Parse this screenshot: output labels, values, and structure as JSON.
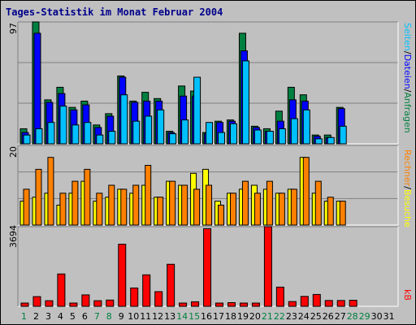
{
  "title": "Tages-Statistik im Monat Februar 2004",
  "colors": {
    "anfragen": "#008040",
    "dateien": "#0000ff",
    "seiten": "#00c0ff",
    "besuche": "#ffff00",
    "rechner": "#ff8000",
    "kb": "#ff0000",
    "weekday": "#000000",
    "weekend": "#008040"
  },
  "right_labels": {
    "anfragen": "Anfragen",
    "dateien": "Dateien",
    "seiten": "Seiten",
    "besuche": "Besuche",
    "rechner": "Rechner",
    "kb": "kB",
    "sep": "/"
  },
  "chart_data": [
    {
      "type": "bar",
      "panel": "top",
      "ymax_label": "97",
      "x": [
        1,
        2,
        3,
        4,
        5,
        6,
        7,
        8,
        9,
        10,
        11,
        12,
        13,
        14,
        15,
        16,
        17,
        18,
        19,
        20,
        21,
        22,
        23,
        24,
        25,
        26,
        27,
        28,
        29,
        30,
        31
      ],
      "series": [
        {
          "name": "Anfragen",
          "values": [
            12,
            97,
            35,
            45,
            29,
            34,
            15,
            24,
            54,
            34,
            41,
            36,
            10,
            46,
            42,
            9,
            18,
            19,
            88,
            14,
            12,
            26,
            45,
            39,
            7,
            7,
            29,
            0,
            0,
            0,
            0
          ]
        },
        {
          "name": "Dateien",
          "values": [
            9,
            88,
            33,
            40,
            27,
            31,
            13,
            22,
            53,
            33,
            34,
            34,
            9,
            38,
            38,
            8,
            17,
            18,
            74,
            13,
            10,
            18,
            35,
            34,
            6,
            5,
            28,
            0,
            0,
            0,
            0
          ]
        },
        {
          "name": "Seiten",
          "values": [
            7,
            12,
            17,
            30,
            15,
            17,
            7,
            10,
            39,
            18,
            22,
            27,
            8,
            19,
            53,
            17,
            9,
            16,
            66,
            11,
            10,
            12,
            20,
            27,
            4,
            5,
            14,
            0,
            0,
            0,
            0
          ]
        }
      ]
    },
    {
      "type": "bar",
      "panel": "middle",
      "ymax_label": "20",
      "x": [
        1,
        2,
        3,
        4,
        5,
        6,
        7,
        8,
        9,
        10,
        11,
        12,
        13,
        14,
        15,
        16,
        17,
        18,
        19,
        20,
        21,
        22,
        23,
        24,
        25,
        26,
        27,
        28,
        29,
        30,
        31
      ],
      "series": [
        {
          "name": "Besuche",
          "values": [
            6,
            7,
            8,
            5,
            8,
            11,
            6,
            7,
            9,
            8,
            10,
            7,
            11,
            10,
            13,
            14,
            6,
            8,
            9,
            10,
            9,
            8,
            9,
            17,
            8,
            6,
            6,
            0,
            0,
            0,
            0
          ]
        },
        {
          "name": "Rechner",
          "values": [
            9,
            14,
            17,
            8,
            11,
            14,
            8,
            10,
            9,
            10,
            15,
            7,
            11,
            10,
            9,
            10,
            5,
            8,
            11,
            8,
            11,
            8,
            9,
            17,
            11,
            7,
            6,
            0,
            0,
            0,
            0
          ]
        }
      ]
    },
    {
      "type": "bar",
      "panel": "bottom",
      "ymax_label": "3694",
      "x": [
        1,
        2,
        3,
        4,
        5,
        6,
        7,
        8,
        9,
        10,
        11,
        12,
        13,
        14,
        15,
        16,
        17,
        18,
        19,
        20,
        21,
        22,
        23,
        24,
        25,
        26,
        27,
        28,
        29,
        30,
        31
      ],
      "series": [
        {
          "name": "kB",
          "values": [
            150,
            450,
            260,
            1500,
            140,
            530,
            260,
            290,
            2880,
            850,
            1460,
            680,
            1950,
            140,
            210,
            3600,
            150,
            170,
            150,
            130,
            3694,
            890,
            220,
            460,
            550,
            270,
            270,
            280,
            0,
            0,
            0
          ]
        }
      ]
    }
  ],
  "x_tick_labels": [
    "1",
    "2",
    "3",
    "4",
    "5",
    "6",
    "7",
    "8",
    "9",
    "10",
    "11",
    "12",
    "13",
    "14",
    "15",
    "16",
    "17",
    "18",
    "19",
    "20",
    "21",
    "22",
    "23",
    "24",
    "25",
    "26",
    "27",
    "28",
    "29",
    "30",
    "31"
  ],
  "weekend_days": [
    1,
    7,
    8,
    14,
    15,
    21,
    22,
    28,
    29
  ]
}
